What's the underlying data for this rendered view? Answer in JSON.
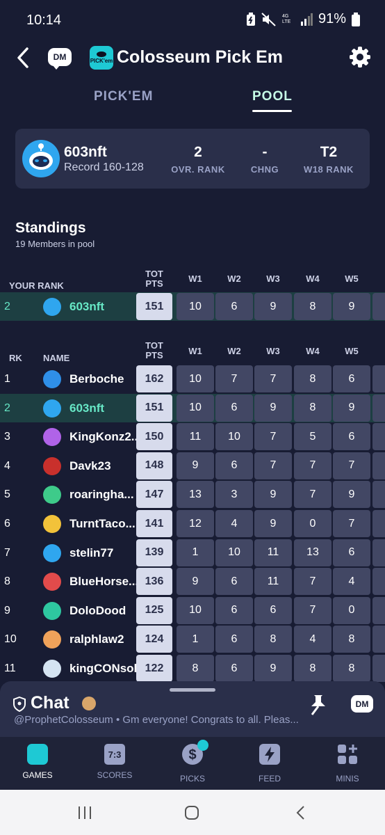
{
  "status_bar": {
    "time": "10:14",
    "signal": "4G LTE",
    "battery": "91%"
  },
  "header": {
    "title": "Colosseum Pick Em",
    "dm_label": "DM",
    "logo_label": "PICK'em"
  },
  "tabs": [
    {
      "label": "PICK'EM"
    },
    {
      "label": "POOL"
    }
  ],
  "profile": {
    "name": "603nft",
    "record": "Record 160-128",
    "stats": [
      {
        "value": "2",
        "label": "OVR. RANK"
      },
      {
        "value": "-",
        "label": "CHNG"
      },
      {
        "value": "T2",
        "label": "W18 RANK"
      }
    ]
  },
  "standings": {
    "title": "Standings",
    "subtitle": "19 Members in pool"
  },
  "your_rank_table": {
    "headers": {
      "rank": "YOUR RANK",
      "tot_line1": "TOT",
      "tot_line2": "PTS",
      "weeks": [
        "W1",
        "W2",
        "W3",
        "W4",
        "W5"
      ]
    },
    "row": {
      "rank": "2",
      "name": "603nft",
      "tot": "151",
      "weeks": [
        "10",
        "6",
        "9",
        "8",
        "9"
      ]
    }
  },
  "table": {
    "headers": {
      "rank": "RK",
      "name": "NAME",
      "tot_line1": "TOT",
      "tot_line2": "PTS",
      "weeks": [
        "W1",
        "W2",
        "W3",
        "W4",
        "W5"
      ]
    },
    "rows": [
      {
        "rank": "1",
        "name": "Berboche",
        "tot": "162",
        "weeks": [
          "10",
          "7",
          "7",
          "8",
          "6"
        ]
      },
      {
        "rank": "2",
        "name": "603nft",
        "tot": "151",
        "weeks": [
          "10",
          "6",
          "9",
          "8",
          "9"
        ]
      },
      {
        "rank": "3",
        "name": "KingKonz2...",
        "tot": "150",
        "weeks": [
          "11",
          "10",
          "7",
          "5",
          "6"
        ]
      },
      {
        "rank": "4",
        "name": "Davk23",
        "tot": "148",
        "weeks": [
          "9",
          "6",
          "7",
          "7",
          "7"
        ]
      },
      {
        "rank": "5",
        "name": "roaringha...",
        "tot": "147",
        "weeks": [
          "13",
          "3",
          "9",
          "7",
          "9"
        ]
      },
      {
        "rank": "6",
        "name": "TurntTaco...",
        "tot": "141",
        "weeks": [
          "12",
          "4",
          "9",
          "0",
          "7"
        ]
      },
      {
        "rank": "7",
        "name": "stelin77",
        "tot": "139",
        "weeks": [
          "1",
          "10",
          "11",
          "13",
          "6"
        ]
      },
      {
        "rank": "8",
        "name": "BlueHorse...",
        "tot": "136",
        "weeks": [
          "9",
          "6",
          "11",
          "7",
          "4"
        ]
      },
      {
        "rank": "9",
        "name": "DoloDood",
        "tot": "125",
        "weeks": [
          "10",
          "6",
          "6",
          "7",
          "0"
        ]
      },
      {
        "rank": "10",
        "name": "ralphlaw2",
        "tot": "124",
        "weeks": [
          "1",
          "6",
          "8",
          "4",
          "8"
        ]
      },
      {
        "rank": "11",
        "name": "kingCONsol",
        "tot": "122",
        "weeks": [
          "8",
          "6",
          "9",
          "8",
          "8"
        ]
      }
    ]
  },
  "chat": {
    "title": "Chat",
    "message": "@ProphetColosseum • Gm everyone! Congrats to all. Pleas...",
    "dm_label": "DM"
  },
  "bottom_nav": [
    {
      "label": "GAMES",
      "icon": "pickem-logo-icon"
    },
    {
      "label": "SCORES",
      "icon": "scoreboard-icon",
      "glyph": "7:3"
    },
    {
      "label": "PICKS",
      "icon": "dollar-coin-icon"
    },
    {
      "label": "FEED",
      "icon": "lightning-icon"
    },
    {
      "label": "MINIS",
      "icon": "grid-plus-icon"
    }
  ],
  "colors": {
    "bg": "#181c33",
    "card": "#2a2f4a",
    "accent": "#67e8c6",
    "highlight_row": "#1d3f42",
    "notification_dot": "#1ec9d4"
  },
  "avatar_colors": [
    "#2f8fe8",
    "#2fa6ef",
    "#b063e8",
    "#c9302c",
    "#3ecb8a",
    "#f2c23a",
    "#2fa6ef",
    "#e24b4b",
    "#2ec7a0",
    "#f0a25a",
    "#d5e4f2"
  ]
}
